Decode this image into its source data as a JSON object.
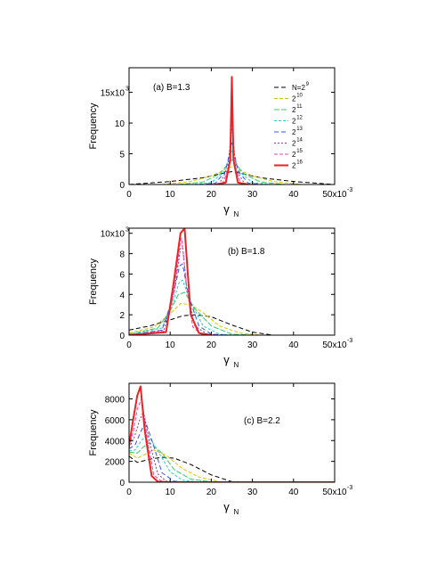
{
  "chart_data": [
    {
      "type": "line",
      "annotation": "(a) B=1.3",
      "xlabel": "γ",
      "xlabel_sub": "N",
      "ylabel": "Frequency",
      "xlim": [
        0,
        0.05
      ],
      "ylim": [
        0,
        19000
      ],
      "xticks": [
        0,
        0.01,
        0.02,
        0.03,
        0.04,
        0.05
      ],
      "xtick_labels": [
        "0",
        "10",
        "20",
        "30",
        "40",
        "50x10"
      ],
      "x_exponent": "-3",
      "yticks": [
        0,
        5000,
        10000,
        15000
      ],
      "ytick_labels": [
        "0",
        "5",
        "10",
        "15x10"
      ],
      "y_exponent": "3",
      "legend_position": "top-right",
      "series": [
        {
          "name": "N=2",
          "name_sup": "9",
          "color": "#000000",
          "dash": "5,3",
          "width": 1,
          "x": [
            0,
            0.01,
            0.018,
            0.022,
            0.025,
            0.028,
            0.032,
            0.04,
            0.05
          ],
          "y": [
            0,
            500,
            1100,
            1700,
            2100,
            1700,
            1100,
            500,
            0
          ]
        },
        {
          "name": "2",
          "name_sup": "10",
          "color": "#d9c200",
          "dash": "4,2",
          "width": 1,
          "x": [
            0.008,
            0.015,
            0.02,
            0.023,
            0.025,
            0.027,
            0.03,
            0.035,
            0.042
          ],
          "y": [
            0,
            500,
            1400,
            2300,
            2900,
            2300,
            1400,
            500,
            0
          ]
        },
        {
          "name": "2",
          "name_sup": "11",
          "color": "#33cc66",
          "dash": "6,2",
          "width": 1,
          "x": [
            0.012,
            0.018,
            0.022,
            0.024,
            0.025,
            0.026,
            0.028,
            0.032,
            0.038
          ],
          "y": [
            0,
            400,
            1700,
            3300,
            4000,
            3300,
            1700,
            400,
            0
          ]
        },
        {
          "name": "2",
          "name_sup": "12",
          "color": "#22cccc",
          "dash": "3,2",
          "width": 1,
          "x": [
            0.015,
            0.02,
            0.023,
            0.0245,
            0.025,
            0.0255,
            0.027,
            0.03,
            0.035
          ],
          "y": [
            0,
            300,
            2000,
            4600,
            5500,
            4600,
            2000,
            300,
            0
          ]
        },
        {
          "name": "2",
          "name_sup": "13",
          "color": "#3355dd",
          "dash": "5,3",
          "width": 1,
          "x": [
            0.017,
            0.021,
            0.0235,
            0.0247,
            0.025,
            0.0253,
            0.0265,
            0.029,
            0.033
          ],
          "y": [
            0,
            200,
            2200,
            6000,
            7000,
            6000,
            2200,
            200,
            0
          ]
        },
        {
          "name": "2",
          "name_sup": "14",
          "color": "#993399",
          "dash": "2,2",
          "width": 1,
          "x": [
            0.019,
            0.022,
            0.024,
            0.0248,
            0.025,
            0.0252,
            0.026,
            0.028,
            0.031
          ],
          "y": [
            0,
            200,
            2500,
            8200,
            9500,
            8200,
            2500,
            200,
            0
          ]
        },
        {
          "name": "2",
          "name_sup": "15",
          "color": "#ee44aa",
          "dash": "4,2",
          "width": 1,
          "x": [
            0.02,
            0.0228,
            0.0243,
            0.0249,
            0.025,
            0.0251,
            0.0257,
            0.0272,
            0.03
          ],
          "y": [
            0,
            200,
            2800,
            11200,
            13000,
            11200,
            2800,
            200,
            0
          ]
        },
        {
          "name": "2",
          "name_sup": "16",
          "color": "#ee2222",
          "dash": "",
          "width": 2,
          "x": [
            0.021,
            0.0235,
            0.0246,
            0.025,
            0.0254,
            0.0265,
            0.029
          ],
          "y": [
            0,
            300,
            4000,
            17500,
            4000,
            300,
            0
          ]
        }
      ]
    },
    {
      "type": "line",
      "annotation": "(b) B=1.8",
      "xlabel": "γ",
      "xlabel_sub": "N",
      "ylabel": "Frequency",
      "xlim": [
        0,
        0.05
      ],
      "ylim": [
        0,
        10500
      ],
      "xticks": [
        0,
        0.01,
        0.02,
        0.03,
        0.04,
        0.05
      ],
      "xtick_labels": [
        "0",
        "10",
        "20",
        "30",
        "40",
        "50x10"
      ],
      "x_exponent": "-3",
      "yticks": [
        0,
        2000,
        4000,
        6000,
        8000,
        10000
      ],
      "ytick_labels": [
        "0",
        "2",
        "4",
        "6",
        "8",
        "10x10"
      ],
      "y_exponent": "3",
      "series": [
        {
          "name": "N=2",
          "name_sup": "9",
          "color": "#000000",
          "dash": "5,3",
          "width": 1,
          "x": [
            0,
            0.005,
            0.01,
            0.013,
            0.016,
            0.02,
            0.025,
            0.03,
            0.035
          ],
          "y": [
            500,
            900,
            1500,
            1900,
            2000,
            1800,
            1000,
            300,
            0
          ]
        },
        {
          "name": "2",
          "name_sup": "10",
          "color": "#d9c200",
          "dash": "4,2",
          "width": 1,
          "x": [
            0,
            0.006,
            0.01,
            0.0125,
            0.015,
            0.018,
            0.022,
            0.027,
            0.032
          ],
          "y": [
            200,
            800,
            2100,
            3100,
            3000,
            2200,
            900,
            200,
            0
          ]
        },
        {
          "name": "2",
          "name_sup": "11",
          "color": "#33cc66",
          "dash": "6,2",
          "width": 1,
          "x": [
            0,
            0.007,
            0.01,
            0.012,
            0.0135,
            0.016,
            0.02,
            0.025,
            0.03
          ],
          "y": [
            100,
            700,
            2400,
            4000,
            4200,
            2600,
            900,
            100,
            0
          ]
        },
        {
          "name": "2",
          "name_sup": "12",
          "color": "#22cccc",
          "dash": "3,2",
          "width": 1,
          "x": [
            0,
            0.008,
            0.0105,
            0.0122,
            0.013,
            0.015,
            0.018,
            0.022,
            0.026
          ],
          "y": [
            50,
            700,
            3000,
            5200,
            5400,
            3200,
            900,
            100,
            0
          ]
        },
        {
          "name": "2",
          "name_sup": "13",
          "color": "#3355dd",
          "dash": "5,3",
          "width": 1,
          "x": [
            0,
            0.008,
            0.0105,
            0.0123,
            0.013,
            0.0145,
            0.017,
            0.02,
            0.024
          ],
          "y": [
            0,
            500,
            3500,
            6800,
            7000,
            3800,
            900,
            100,
            0
          ]
        },
        {
          "name": "2",
          "name_sup": "14",
          "color": "#993399",
          "dash": "2,2",
          "width": 1,
          "x": [
            0,
            0.0085,
            0.011,
            0.0125,
            0.013,
            0.014,
            0.016,
            0.019,
            0.022
          ],
          "y": [
            0,
            500,
            4300,
            8500,
            8800,
            4600,
            900,
            100,
            0
          ]
        },
        {
          "name": "2",
          "name_sup": "15",
          "color": "#ee44aa",
          "dash": "4,2",
          "width": 1,
          "x": [
            0,
            0.009,
            0.011,
            0.0125,
            0.0128,
            0.014,
            0.0155,
            0.0175,
            0.021
          ],
          "y": [
            0,
            400,
            4500,
            9300,
            9500,
            4800,
            800,
            100,
            0
          ]
        },
        {
          "name": "2",
          "name_sup": "16",
          "color": "#ee2222",
          "dash": "",
          "width": 2,
          "x": [
            0,
            0.009,
            0.0108,
            0.0125,
            0.0135,
            0.015,
            0.017,
            0.02
          ],
          "y": [
            0,
            300,
            5000,
            10000,
            10500,
            2000,
            200,
            0
          ]
        }
      ]
    },
    {
      "type": "line",
      "annotation": "(c) B=2.2",
      "xlabel": "γ",
      "xlabel_sub": "N",
      "ylabel": "Frequency",
      "xlim": [
        0,
        0.05
      ],
      "ylim": [
        0,
        9500
      ],
      "xticks": [
        0,
        0.01,
        0.02,
        0.03,
        0.04,
        0.05
      ],
      "xtick_labels": [
        "0",
        "10",
        "20",
        "30",
        "40",
        "50x10"
      ],
      "x_exponent": "-3",
      "yticks": [
        0,
        2000,
        4000,
        6000,
        8000
      ],
      "ytick_labels": [
        "0",
        "2000",
        "4000",
        "6000",
        "8000"
      ],
      "series": [
        {
          "name": "N=2",
          "name_sup": "9",
          "color": "#000000",
          "dash": "5,3",
          "width": 1,
          "x": [
            0,
            0.002,
            0.005,
            0.008,
            0.011,
            0.015,
            0.02,
            0.025,
            0.05
          ],
          "y": [
            2500,
            1900,
            2200,
            2400,
            2300,
            1700,
            700,
            50,
            0
          ]
        },
        {
          "name": "2",
          "name_sup": "10",
          "color": "#d9c200",
          "dash": "4,2",
          "width": 1,
          "x": [
            0,
            0.002,
            0.004,
            0.006,
            0.009,
            0.013,
            0.017,
            0.022,
            0.05
          ],
          "y": [
            2800,
            2300,
            2700,
            3100,
            2600,
            1300,
            500,
            50,
            0
          ]
        },
        {
          "name": "2",
          "name_sup": "11",
          "color": "#33cc66",
          "dash": "6,2",
          "width": 1,
          "x": [
            0,
            0.002,
            0.0035,
            0.005,
            0.008,
            0.011,
            0.015,
            0.02,
            0.05
          ],
          "y": [
            2900,
            2800,
            3400,
            3800,
            2800,
            1200,
            300,
            30,
            0
          ]
        },
        {
          "name": "2",
          "name_sup": "12",
          "color": "#22cccc",
          "dash": "3,2",
          "width": 1,
          "x": [
            0,
            0.0015,
            0.003,
            0.0045,
            0.007,
            0.01,
            0.013,
            0.017,
            0.05
          ],
          "y": [
            3000,
            3100,
            4000,
            4600,
            3000,
            1000,
            200,
            20,
            0
          ]
        },
        {
          "name": "2",
          "name_sup": "13",
          "color": "#3355dd",
          "dash": "5,3",
          "width": 1,
          "x": [
            0,
            0.0015,
            0.0028,
            0.004,
            0.006,
            0.008,
            0.011,
            0.014,
            0.05
          ],
          "y": [
            3200,
            3600,
            4800,
            5800,
            3500,
            900,
            100,
            0,
            0
          ]
        },
        {
          "name": "2",
          "name_sup": "14",
          "color": "#993399",
          "dash": "2,2",
          "width": 1,
          "x": [
            0,
            0.0012,
            0.0025,
            0.0035,
            0.005,
            0.007,
            0.009,
            0.012,
            0.05
          ],
          "y": [
            3300,
            4200,
            5900,
            6800,
            3800,
            800,
            100,
            0,
            0
          ]
        },
        {
          "name": "2",
          "name_sup": "15",
          "color": "#ee44aa",
          "dash": "4,2",
          "width": 1,
          "x": [
            0,
            0.001,
            0.002,
            0.003,
            0.0045,
            0.006,
            0.008,
            0.011,
            0.05
          ],
          "y": [
            3400,
            4800,
            7000,
            8000,
            4000,
            700,
            50,
            0,
            0
          ]
        },
        {
          "name": "2",
          "name_sup": "16",
          "color": "#ee2222",
          "dash": "",
          "width": 2,
          "x": [
            0,
            0.001,
            0.002,
            0.0028,
            0.0038,
            0.0055,
            0.007,
            0.01,
            0.05
          ],
          "y": [
            3500,
            6000,
            8300,
            9200,
            5000,
            600,
            50,
            0,
            0
          ]
        }
      ]
    }
  ]
}
